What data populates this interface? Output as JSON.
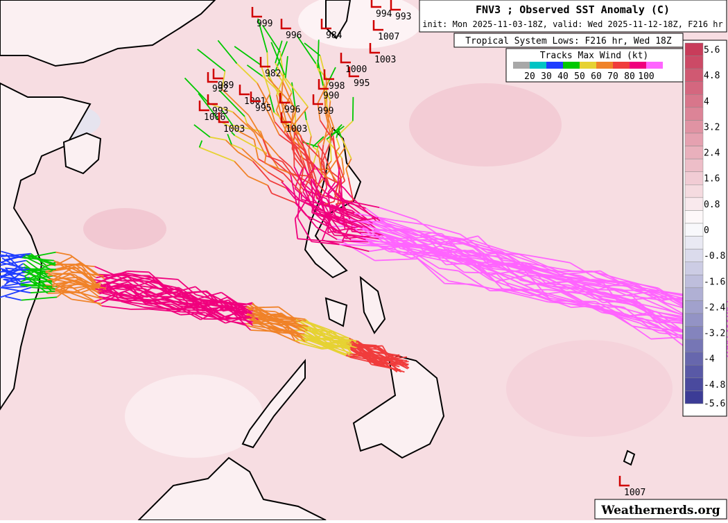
{
  "header": {
    "title": "FNV3 ; Observed SST Anomaly (C)",
    "subtitle": "init: Mon 2025-11-03-18Z, valid: Wed 2025-11-12-18Z, F216 hr"
  },
  "lows_box": {
    "label": "Tropical System Lows: F216 hr, Wed 18Z"
  },
  "wind_legend": {
    "title": "Tracks Max Wind (kt)",
    "labels": [
      "20",
      "30",
      "40",
      "50",
      "60",
      "70",
      "80",
      "100"
    ],
    "colors": [
      "#a8a8a8",
      "#00c4c4",
      "#1e3cff",
      "#00c800",
      "#e6d232",
      "#f08228",
      "#f03c3c",
      "#f0007d",
      "#ff64ff"
    ]
  },
  "colorbar": {
    "labels": [
      "5.6",
      "4.8",
      "4",
      "3.2",
      "2.4",
      "1.6",
      "0.8",
      "0",
      "-0.8",
      "-1.6",
      "-2.4",
      "-3.2",
      "-4",
      "-4.8",
      "-5.6"
    ]
  },
  "pressure_labels": [
    "999",
    "996",
    "984",
    "994",
    "993",
    "1007",
    "1003",
    "992",
    "989",
    "993",
    "1006",
    "1003",
    "1001",
    "995",
    "982",
    "990",
    "995",
    "998",
    "999",
    "996",
    "1003",
    "1000",
    "1007"
  ],
  "watermark": "Weathernerds.org"
}
